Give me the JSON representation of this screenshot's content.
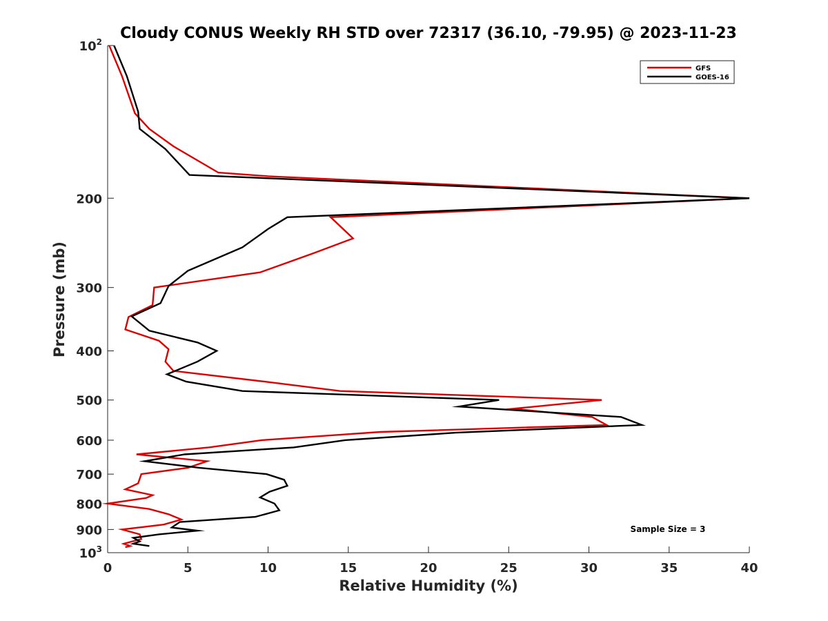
{
  "chart_data": {
    "type": "line",
    "title": "Cloudy CONUS Weekly RH STD over 72317 (36.10, -79.95) @ 2023-11-23",
    "xlabel": "Relative Humidity (%)",
    "ylabel": "Pressure (mb)",
    "xlim": [
      0,
      40
    ],
    "ylim": [
      100,
      1000
    ],
    "y_scale": "log",
    "y_reversed": true,
    "x_ticks": [
      "0",
      "5",
      "10",
      "15",
      "20",
      "25",
      "30",
      "35",
      "40"
    ],
    "y_ticks": [
      {
        "value": 100,
        "label": "10",
        "sup": "2"
      },
      {
        "value": 200,
        "label": "200",
        "sup": ""
      },
      {
        "value": 300,
        "label": "300",
        "sup": ""
      },
      {
        "value": 400,
        "label": "400",
        "sup": ""
      },
      {
        "value": 500,
        "label": "500",
        "sup": ""
      },
      {
        "value": 600,
        "label": "600",
        "sup": ""
      },
      {
        "value": 700,
        "label": "700",
        "sup": ""
      },
      {
        "value": 800,
        "label": "800",
        "sup": ""
      },
      {
        "value": 900,
        "label": "900",
        "sup": ""
      },
      {
        "value": 1000,
        "label": "10",
        "sup": "3"
      }
    ],
    "legend_position": "top-right",
    "annotation": "Sample Size = 3",
    "series": [
      {
        "name": "GFS",
        "color": "#e00000",
        "points": [
          [
            0.1,
            100
          ],
          [
            0.9,
            115
          ],
          [
            1.7,
            136
          ],
          [
            2.6,
            146
          ],
          [
            4.1,
            158
          ],
          [
            6.9,
            178
          ],
          [
            10.0,
            181
          ],
          [
            40.0,
            200
          ],
          [
            13.9,
            218
          ],
          [
            15.3,
            240
          ],
          [
            12.8,
            257
          ],
          [
            9.5,
            280
          ],
          [
            2.9,
            300
          ],
          [
            2.8,
            325
          ],
          [
            1.3,
            343
          ],
          [
            1.1,
            363
          ],
          [
            3.2,
            382
          ],
          [
            3.8,
            397
          ],
          [
            3.6,
            420
          ],
          [
            4.1,
            438
          ],
          [
            9.8,
            460
          ],
          [
            14.5,
            480
          ],
          [
            30.8,
            500
          ],
          [
            25.3,
            520
          ],
          [
            30.2,
            540
          ],
          [
            31.1,
            560
          ],
          [
            17.0,
            578
          ],
          [
            9.6,
            600
          ],
          [
            6.3,
            620
          ],
          [
            1.8,
            640
          ],
          [
            6.2,
            660
          ],
          [
            5.0,
            680
          ],
          [
            2.1,
            700
          ],
          [
            1.9,
            730
          ],
          [
            1.1,
            750
          ],
          [
            2.8,
            770
          ],
          [
            2.4,
            780
          ],
          [
            0.0,
            800
          ],
          [
            2.6,
            820
          ],
          [
            3.8,
            840
          ],
          [
            4.6,
            860
          ],
          [
            3.5,
            880
          ],
          [
            0.9,
            900
          ],
          [
            2.0,
            920
          ],
          [
            2.1,
            940
          ],
          [
            1.0,
            960
          ],
          [
            1.4,
            970
          ],
          [
            1.1,
            975
          ]
        ]
      },
      {
        "name": "GOES-16",
        "color": "#000000",
        "points": [
          [
            0.4,
            100
          ],
          [
            1.2,
            115
          ],
          [
            1.9,
            135
          ],
          [
            2.0,
            146
          ],
          [
            3.6,
            160
          ],
          [
            5.1,
            180
          ],
          [
            40.0,
            200
          ],
          [
            11.2,
            218
          ],
          [
            10.0,
            230
          ],
          [
            8.4,
            250
          ],
          [
            5.0,
            278
          ],
          [
            3.8,
            298
          ],
          [
            3.3,
            322
          ],
          [
            1.5,
            342
          ],
          [
            2.6,
            365
          ],
          [
            5.6,
            385
          ],
          [
            6.8,
            400
          ],
          [
            5.6,
            420
          ],
          [
            3.7,
            445
          ],
          [
            4.9,
            460
          ],
          [
            8.4,
            480
          ],
          [
            24.4,
            500
          ],
          [
            21.9,
            515
          ],
          [
            32.0,
            540
          ],
          [
            33.3,
            560
          ],
          [
            21.7,
            580
          ],
          [
            14.8,
            600
          ],
          [
            11.6,
            620
          ],
          [
            4.8,
            640
          ],
          [
            2.3,
            660
          ],
          [
            5.7,
            680
          ],
          [
            9.9,
            700
          ],
          [
            11.0,
            718
          ],
          [
            11.2,
            738
          ],
          [
            10.1,
            758
          ],
          [
            9.5,
            778
          ],
          [
            10.4,
            800
          ],
          [
            10.7,
            825
          ],
          [
            9.2,
            850
          ],
          [
            4.5,
            870
          ],
          [
            4.0,
            892
          ],
          [
            5.6,
            905
          ],
          [
            3.2,
            920
          ],
          [
            1.6,
            935
          ],
          [
            2.0,
            950
          ],
          [
            1.6,
            960
          ],
          [
            2.6,
            970
          ]
        ]
      }
    ]
  }
}
